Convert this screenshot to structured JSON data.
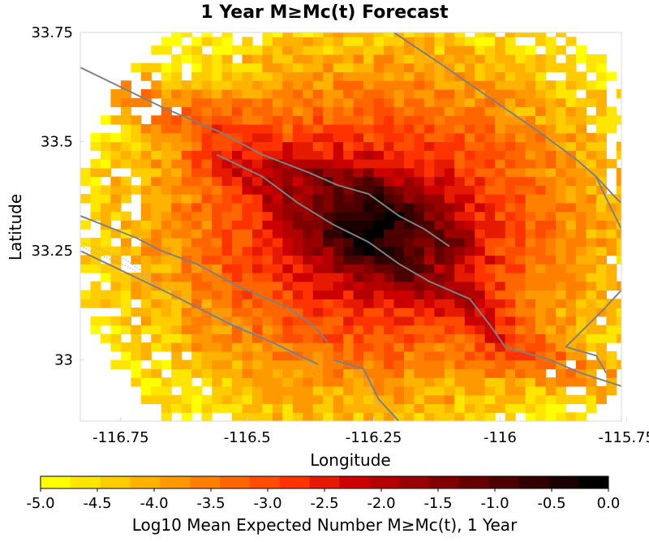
{
  "chart_data": {
    "type": "heatmap",
    "title": "1 Year M≥Mc(t) Forecast",
    "xlabel": "Longitude",
    "ylabel": "Latitude",
    "xlim": [
      -116.83,
      -115.76
    ],
    "ylim": [
      32.86,
      33.75
    ],
    "x_ticks": [
      {
        "value": -116.75,
        "label": "-116.75"
      },
      {
        "value": -116.5,
        "label": "-116.5"
      },
      {
        "value": -116.25,
        "label": "-116.25"
      },
      {
        "value": -116.0,
        "label": "-116"
      },
      {
        "value": -115.75,
        "label": "-115.75"
      }
    ],
    "y_ticks": [
      {
        "value": 33.75,
        "label": "33.75"
      },
      {
        "value": 33.5,
        "label": "33.5"
      },
      {
        "value": 33.25,
        "label": "33.25"
      },
      {
        "value": 33.0,
        "label": "33"
      }
    ],
    "cell_size_deg": 0.02,
    "grid": false,
    "peak": {
      "lon": -116.25,
      "lat": 33.3,
      "log10_value": -0.1
    },
    "colorbar": {
      "label": "Log10 Mean Expected Number M≥Mc(t), 1 Year",
      "min": -5.0,
      "max": 0.0,
      "ticks": [
        {
          "value": -5.0,
          "label": "-5.0"
        },
        {
          "value": -4.5,
          "label": "-4.5"
        },
        {
          "value": -4.0,
          "label": "-4.0"
        },
        {
          "value": -3.5,
          "label": "-3.5"
        },
        {
          "value": -3.0,
          "label": "-3.0"
        },
        {
          "value": -2.5,
          "label": "-2.5"
        },
        {
          "value": -2.0,
          "label": "-2.0"
        },
        {
          "value": -1.5,
          "label": "-1.5"
        },
        {
          "value": -1.0,
          "label": "-1.0"
        },
        {
          "value": -0.5,
          "label": "-0.5"
        },
        {
          "value": 0.0,
          "label": "0.0"
        }
      ],
      "colors": [
        "#ffff00",
        "#ffe600",
        "#ffcc00",
        "#ffb300",
        "#ff9900",
        "#ff7f00",
        "#ff6600",
        "#ff4d00",
        "#ff3300",
        "#e61a00",
        "#cc0000",
        "#b30000",
        "#990000",
        "#800000",
        "#660000",
        "#4d0000",
        "#330000",
        "#1a0000",
        "#000000"
      ]
    },
    "fault_color": "#808080",
    "faults": [
      [
        [
          -116.83,
          33.67
        ],
        [
          -116.67,
          33.58
        ],
        [
          -116.55,
          33.52
        ],
        [
          -116.47,
          33.47
        ],
        [
          -116.38,
          33.43
        ],
        [
          -116.32,
          33.4
        ],
        [
          -116.26,
          33.38
        ],
        [
          -116.2,
          33.33
        ],
        [
          -116.15,
          33.3
        ],
        [
          -116.1,
          33.26
        ]
      ],
      [
        [
          -116.56,
          33.47
        ],
        [
          -116.47,
          33.42
        ],
        [
          -116.4,
          33.36
        ],
        [
          -116.33,
          33.31
        ],
        [
          -116.26,
          33.27
        ],
        [
          -116.2,
          33.22
        ],
        [
          -116.14,
          33.18
        ],
        [
          -116.06,
          33.14
        ],
        [
          -116.02,
          33.08
        ],
        [
          -115.99,
          33.03
        ],
        [
          -115.9,
          33.0
        ],
        [
          -115.84,
          32.97
        ],
        [
          -115.76,
          32.94
        ]
      ],
      [
        [
          -116.83,
          33.33
        ],
        [
          -116.72,
          33.28
        ],
        [
          -116.67,
          33.25
        ],
        [
          -116.6,
          33.22
        ],
        [
          -116.52,
          33.17
        ],
        [
          -116.42,
          33.12
        ],
        [
          -116.37,
          33.08
        ],
        [
          -116.34,
          33.04
        ]
      ],
      [
        [
          -116.83,
          33.25
        ],
        [
          -116.65,
          33.15
        ],
        [
          -116.53,
          33.08
        ],
        [
          -116.45,
          33.04
        ],
        [
          -116.36,
          32.99
        ]
      ],
      [
        [
          -116.33,
          33.0
        ],
        [
          -116.27,
          32.98
        ],
        [
          -116.24,
          32.91
        ],
        [
          -116.2,
          32.86
        ]
      ],
      [
        [
          -116.21,
          33.75
        ],
        [
          -116.12,
          33.68
        ],
        [
          -116.02,
          33.6
        ],
        [
          -115.92,
          33.52
        ],
        [
          -115.85,
          33.46
        ],
        [
          -115.81,
          33.42
        ],
        [
          -115.77,
          33.37
        ],
        [
          -115.76,
          33.36
        ]
      ],
      [
        [
          -115.81,
          33.42
        ],
        [
          -115.79,
          33.37
        ],
        [
          -115.76,
          33.3
        ]
      ],
      [
        [
          -115.87,
          33.03
        ],
        [
          -115.81,
          33.01
        ],
        [
          -115.79,
          32.97
        ]
      ],
      [
        [
          -115.87,
          33.03
        ],
        [
          -115.8,
          33.11
        ],
        [
          -115.76,
          33.16
        ]
      ]
    ],
    "dotted_fault_color": "#a8a8a8",
    "dotted_faults": [
      [
        [
          -116.83,
          33.27
        ],
        [
          -116.74,
          33.23
        ],
        [
          -116.68,
          33.18
        ],
        [
          -116.6,
          33.13
        ],
        [
          -116.52,
          33.08
        ],
        [
          -116.45,
          33.04
        ],
        [
          -116.38,
          33.0
        ]
      ],
      [
        [
          -116.83,
          33.26
        ],
        [
          -116.73,
          33.21
        ],
        [
          -116.67,
          33.16
        ],
        [
          -116.58,
          33.11
        ],
        [
          -116.5,
          33.07
        ],
        [
          -116.42,
          33.02
        ],
        [
          -116.36,
          32.98
        ]
      ],
      [
        [
          -116.33,
          33.0
        ],
        [
          -116.27,
          32.97
        ],
        [
          -116.24,
          32.9
        ],
        [
          -116.2,
          32.86
        ]
      ]
    ]
  }
}
